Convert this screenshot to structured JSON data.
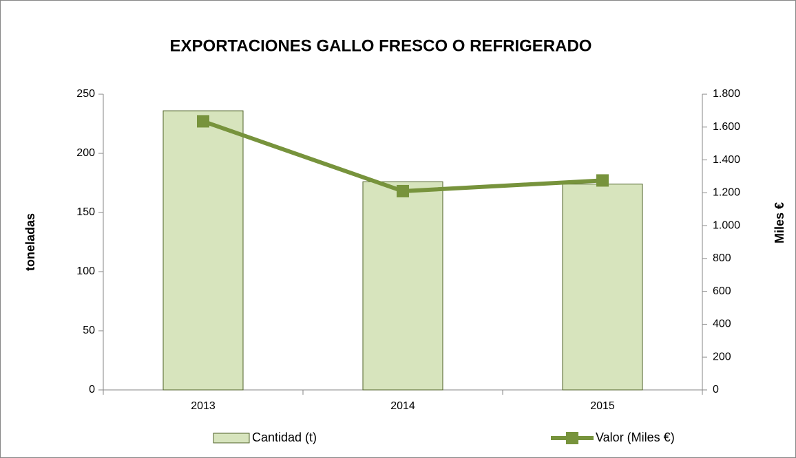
{
  "chart_data": {
    "type": "bar",
    "title": "EXPORTACIONES GALLO FRESCO O REFRIGERADO",
    "ylabel": "toneladas",
    "y2label": "Miles €",
    "categories": [
      "2013",
      "2014",
      "2015"
    ],
    "series": [
      {
        "name": "Cantidad (t)",
        "type": "bar",
        "color": "#d7e4bd",
        "edge_color": "#4f6228",
        "values": [
          236,
          176,
          174
        ]
      },
      {
        "name": "Valor (Miles €)",
        "type": "line",
        "axis": "y2",
        "color": "#77933c",
        "values": [
          1635,
          1210,
          1275
        ]
      }
    ],
    "ylim": [
      0,
      250
    ],
    "yticks": [
      0,
      50,
      100,
      150,
      200,
      250
    ],
    "y2lim": [
      0,
      1800
    ],
    "y2ticks": [
      0,
      200,
      400,
      600,
      800,
      {
        "value": 1000,
        "label": "1.000"
      },
      {
        "value": 1200,
        "label": "1.200"
      },
      {
        "value": 1400,
        "label": "1.400"
      },
      {
        "value": 1600,
        "label": "1.600"
      },
      {
        "value": 1800,
        "label": "1.800"
      }
    ],
    "legend": "bottom"
  }
}
